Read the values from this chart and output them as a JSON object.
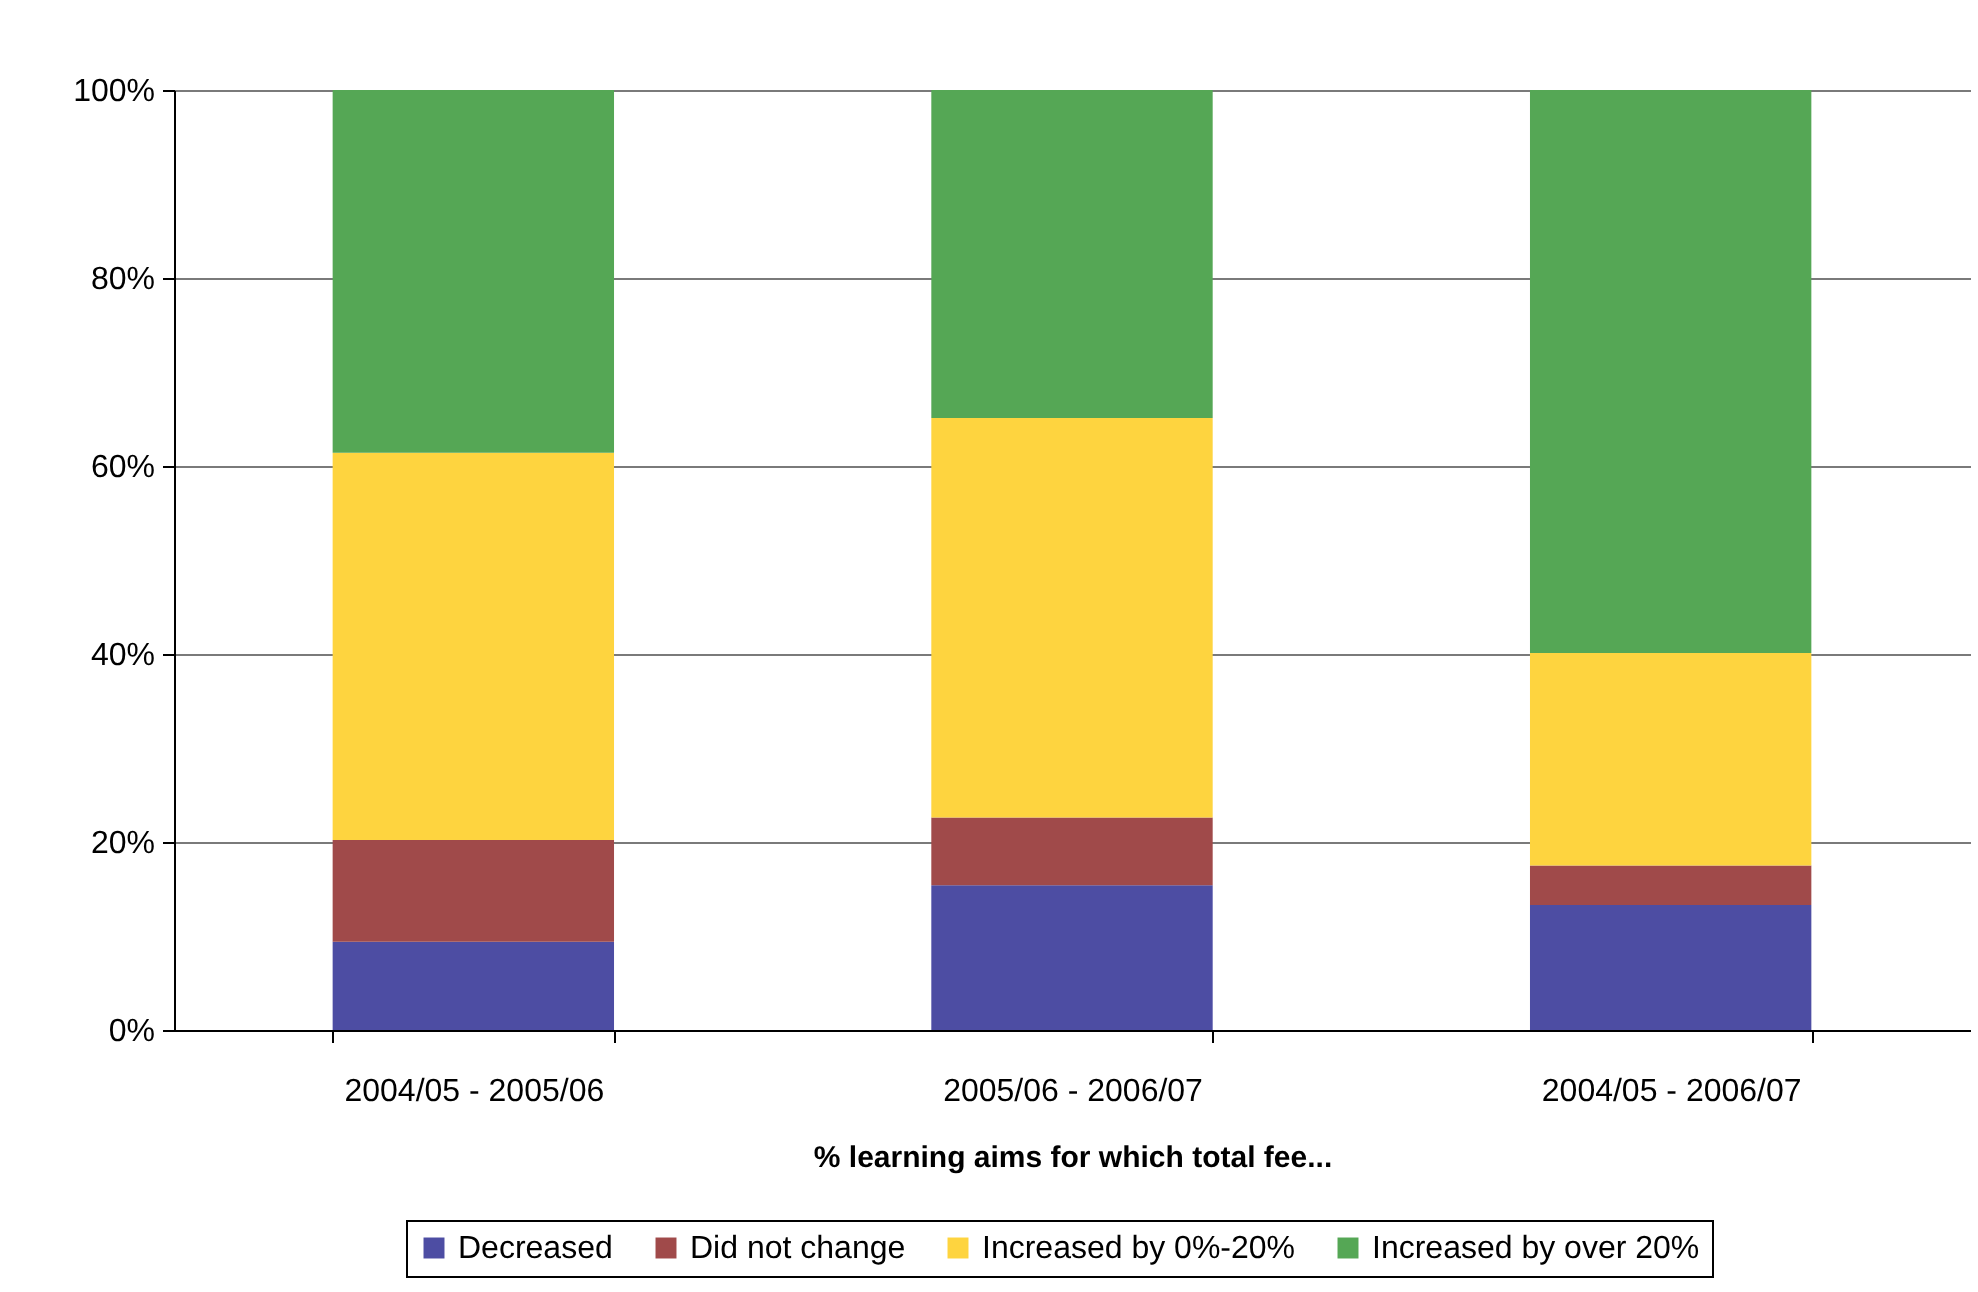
{
  "chart_data": {
    "type": "bar",
    "stacked": true,
    "categories": [
      "2004/05 - 2005/06",
      "2005/06 - 2006/07",
      "2004/05 - 2006/07"
    ],
    "xlabel": "% learning aims for which total fee...",
    "series": [
      {
        "name": "Decreased",
        "color": "#4d4da3",
        "values": [
          9.4,
          15.4,
          13.3
        ]
      },
      {
        "name": "Did not change",
        "color": "#a04a4a",
        "values": [
          10.8,
          7.2,
          4.2
        ]
      },
      {
        "name": "Increased by 0%-20%",
        "color": "#fed43f",
        "values": [
          41.2,
          42.5,
          22.6
        ]
      },
      {
        "name": "Increased by over 20%",
        "color": "#55a755",
        "values": [
          38.6,
          34.9,
          59.9
        ]
      }
    ],
    "ylim": [
      0,
      100
    ],
    "yticks": [
      {
        "value": 0,
        "label": "0%"
      },
      {
        "value": 20,
        "label": "20%"
      },
      {
        "value": 40,
        "label": "40%"
      },
      {
        "value": 60,
        "label": "60%"
      },
      {
        "value": 80,
        "label": "80%"
      },
      {
        "value": 100,
        "label": "100%"
      }
    ],
    "grid": "y",
    "legend": "bottom"
  }
}
